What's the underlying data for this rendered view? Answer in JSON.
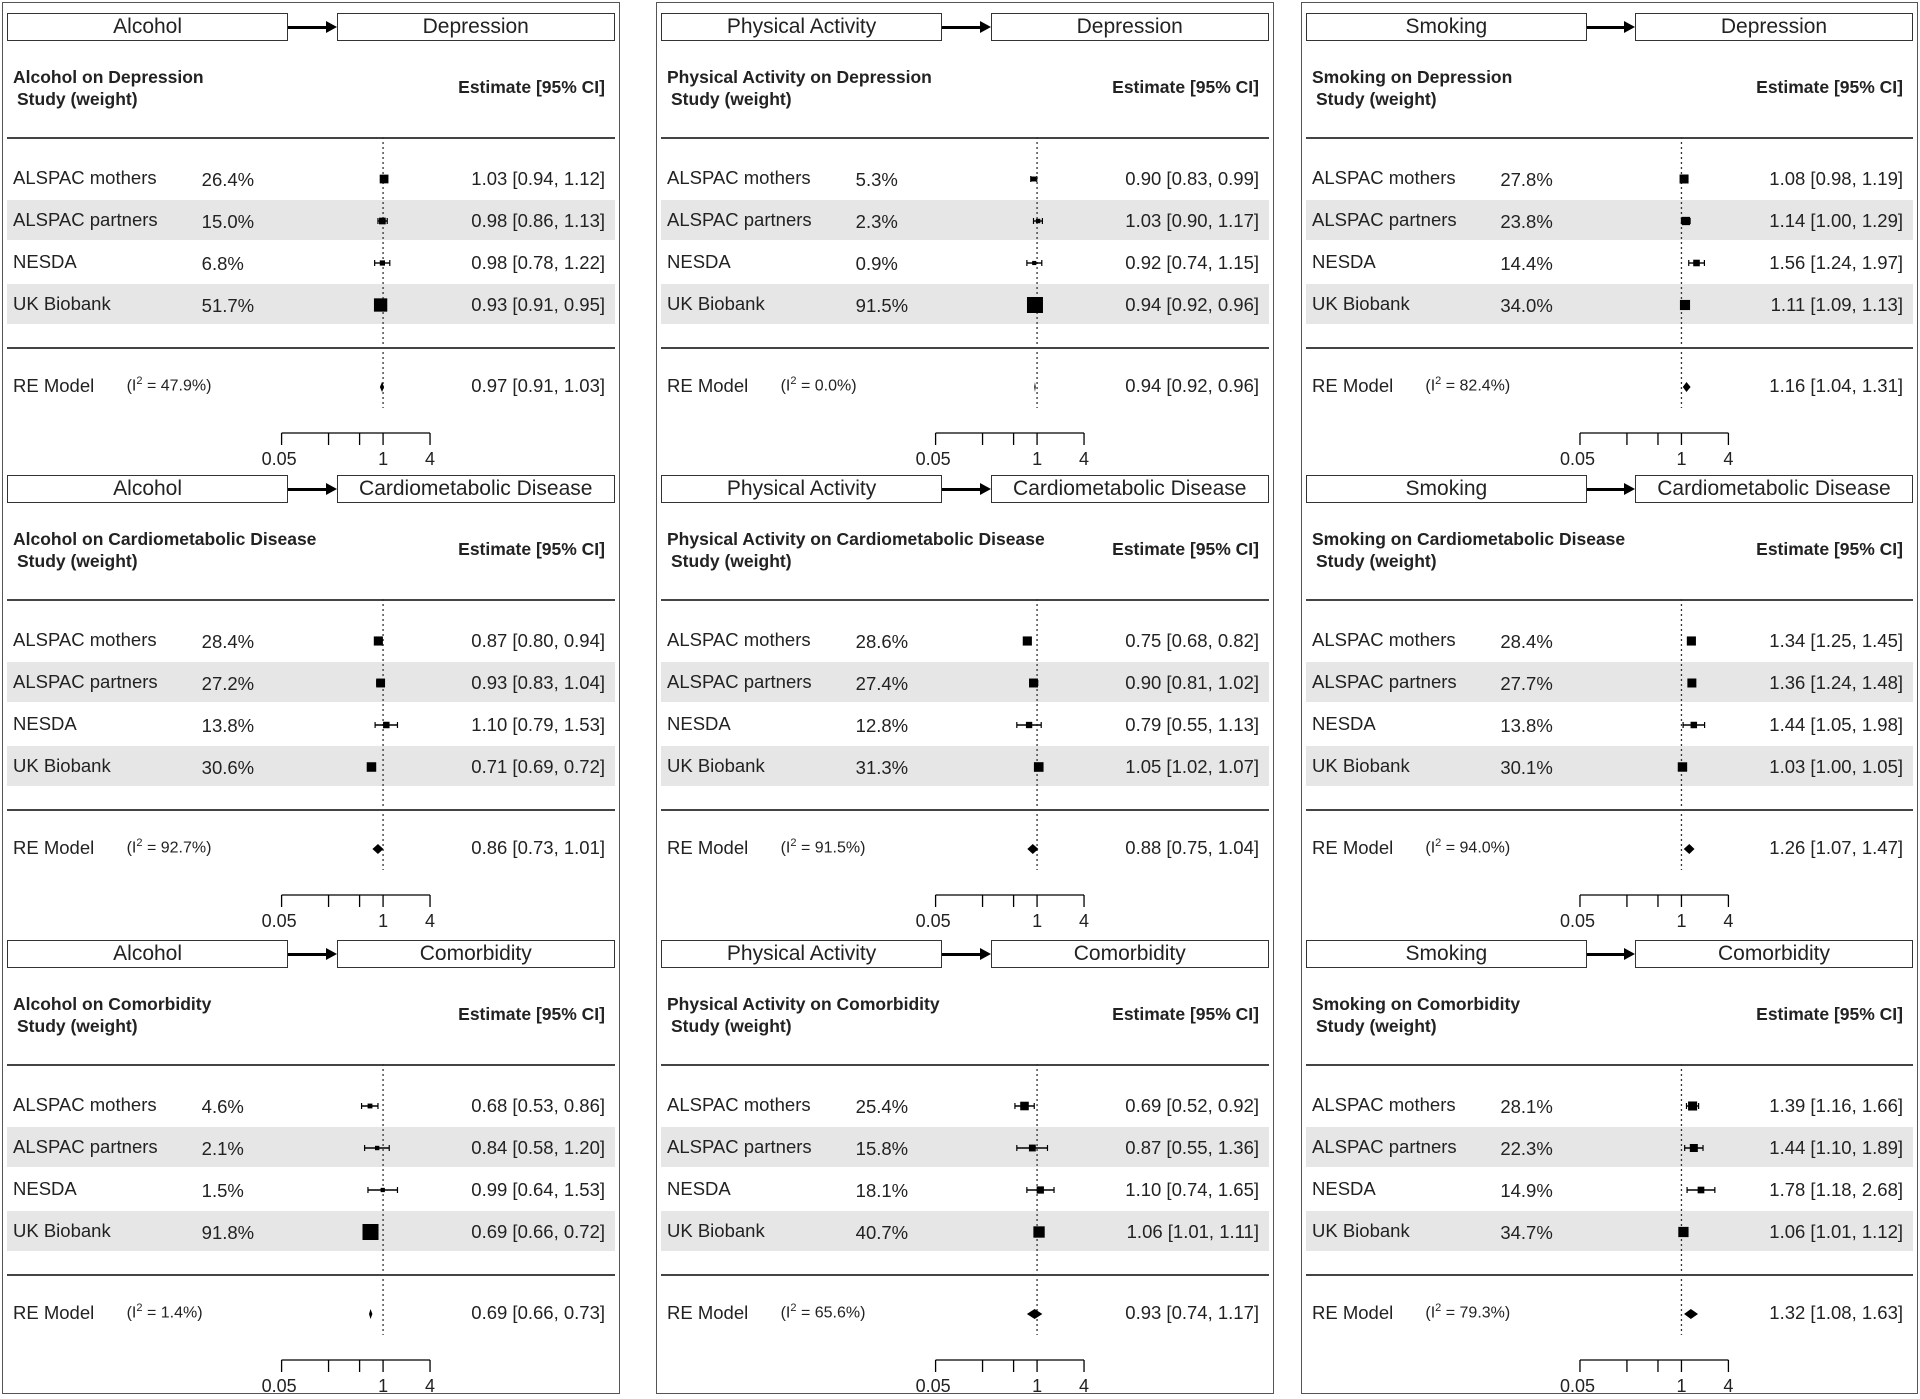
{
  "chart_data": [
    {
      "type": "forest",
      "exposure": "Alcohol",
      "outcome": "Depression",
      "title": "Alcohol on Depression",
      "subtitle": "Study (weight)",
      "estimate_header": "Estimate [95% CI]",
      "studies": [
        {
          "name": "ALSPAC mothers",
          "weight": "26.4%",
          "est": 1.03,
          "lo": 0.94,
          "hi": 1.12,
          "label": "1.03 [0.94, 1.12]"
        },
        {
          "name": "ALSPAC partners",
          "weight": "15.0%",
          "est": 0.98,
          "lo": 0.86,
          "hi": 1.13,
          "label": "0.98 [0.86, 1.13]"
        },
        {
          "name": "NESDA",
          "weight": "6.8%",
          "est": 0.98,
          "lo": 0.78,
          "hi": 1.22,
          "label": "0.98 [0.78, 1.22]"
        },
        {
          "name": "UK Biobank",
          "weight": "51.7%",
          "est": 0.93,
          "lo": 0.91,
          "hi": 0.95,
          "label": "0.93 [0.91, 0.95]"
        }
      ],
      "re_model": {
        "label": "RE Model",
        "i2_prefix": "(I",
        "i2_suffix": " = 47.9%)",
        "est": 0.97,
        "lo": 0.91,
        "hi": 1.03,
        "text": "0.97 [0.91, 1.03]"
      },
      "x_ticks": [
        "0.05",
        "1",
        "4"
      ],
      "xscale": "log"
    },
    {
      "type": "forest",
      "exposure": "Alcohol",
      "outcome": "Cardiometabolic Disease",
      "title": "Alcohol on Cardiometabolic Disease",
      "subtitle": "Study (weight)",
      "estimate_header": "Estimate [95% CI]",
      "studies": [
        {
          "name": "ALSPAC mothers",
          "weight": "28.4%",
          "est": 0.87,
          "lo": 0.8,
          "hi": 0.94,
          "label": "0.87 [0.80, 0.94]"
        },
        {
          "name": "ALSPAC partners",
          "weight": "27.2%",
          "est": 0.93,
          "lo": 0.83,
          "hi": 1.04,
          "label": "0.93 [0.83, 1.04]"
        },
        {
          "name": "NESDA",
          "weight": "13.8%",
          "est": 1.1,
          "lo": 0.79,
          "hi": 1.53,
          "label": "1.10 [0.79, 1.53]"
        },
        {
          "name": "UK Biobank",
          "weight": "30.6%",
          "est": 0.71,
          "lo": 0.69,
          "hi": 0.72,
          "label": "0.71 [0.69, 0.72]"
        }
      ],
      "re_model": {
        "label": "RE Model",
        "i2_prefix": "(I",
        "i2_suffix": " = 92.7%)",
        "est": 0.86,
        "lo": 0.73,
        "hi": 1.01,
        "text": "0.86 [0.73, 1.01]"
      },
      "x_ticks": [
        "0.05",
        "1",
        "4"
      ],
      "xscale": "log"
    },
    {
      "type": "forest",
      "exposure": "Alcohol",
      "outcome": "Comorbidity",
      "title": "Alcohol on Comorbidity",
      "subtitle": "Study (weight)",
      "estimate_header": "Estimate [95% CI]",
      "studies": [
        {
          "name": "ALSPAC mothers",
          "weight": "4.6%",
          "est": 0.68,
          "lo": 0.53,
          "hi": 0.86,
          "label": "0.68 [0.53, 0.86]"
        },
        {
          "name": "ALSPAC partners",
          "weight": "2.1%",
          "est": 0.84,
          "lo": 0.58,
          "hi": 1.2,
          "label": "0.84 [0.58, 1.20]"
        },
        {
          "name": "NESDA",
          "weight": "1.5%",
          "est": 0.99,
          "lo": 0.64,
          "hi": 1.53,
          "label": "0.99 [0.64, 1.53]"
        },
        {
          "name": "UK Biobank",
          "weight": "91.8%",
          "est": 0.69,
          "lo": 0.66,
          "hi": 0.72,
          "label": "0.69 [0.66, 0.72]"
        }
      ],
      "re_model": {
        "label": "RE Model",
        "i2_prefix": "(I",
        "i2_suffix": " = 1.4%)",
        "est": 0.69,
        "lo": 0.66,
        "hi": 0.73,
        "text": "0.69 [0.66, 0.73]"
      },
      "x_ticks": [
        "0.05",
        "1",
        "4"
      ],
      "xscale": "log"
    },
    {
      "type": "forest",
      "exposure": "Physical Activity",
      "outcome": "Depression",
      "title": "Physical Activity on Depression",
      "subtitle": "Study (weight)",
      "estimate_header": "Estimate [95% CI]",
      "studies": [
        {
          "name": "ALSPAC mothers",
          "weight": "5.3%",
          "est": 0.9,
          "lo": 0.83,
          "hi": 0.99,
          "label": "0.90 [0.83, 0.99]"
        },
        {
          "name": "ALSPAC partners",
          "weight": "2.3%",
          "est": 1.03,
          "lo": 0.9,
          "hi": 1.17,
          "label": "1.03 [0.90, 1.17]"
        },
        {
          "name": "NESDA",
          "weight": "0.9%",
          "est": 0.92,
          "lo": 0.74,
          "hi": 1.15,
          "label": "0.92 [0.74, 1.15]"
        },
        {
          "name": "UK Biobank",
          "weight": "91.5%",
          "est": 0.94,
          "lo": 0.92,
          "hi": 0.96,
          "label": "0.94 [0.92, 0.96]"
        }
      ],
      "re_model": {
        "label": "RE Model",
        "i2_prefix": "(I",
        "i2_suffix": " = 0.0%)",
        "est": 0.94,
        "lo": 0.92,
        "hi": 0.96,
        "text": "0.94 [0.92, 0.96]"
      },
      "x_ticks": [
        "0.05",
        "1",
        "4"
      ],
      "xscale": "log"
    },
    {
      "type": "forest",
      "exposure": "Physical Activity",
      "outcome": "Cardiometabolic Disease",
      "title": "Physical Activity on Cardiometabolic Disease",
      "subtitle": "Study (weight)",
      "estimate_header": "Estimate [95% CI]",
      "studies": [
        {
          "name": "ALSPAC mothers",
          "weight": "28.6%",
          "est": 0.75,
          "lo": 0.68,
          "hi": 0.82,
          "label": "0.75 [0.68, 0.82]"
        },
        {
          "name": "ALSPAC partners",
          "weight": "27.4%",
          "est": 0.9,
          "lo": 0.81,
          "hi": 1.02,
          "label": "0.90 [0.81, 1.02]"
        },
        {
          "name": "NESDA",
          "weight": "12.8%",
          "est": 0.79,
          "lo": 0.55,
          "hi": 1.13,
          "label": "0.79 [0.55, 1.13]"
        },
        {
          "name": "UK Biobank",
          "weight": "31.3%",
          "est": 1.05,
          "lo": 1.02,
          "hi": 1.07,
          "label": "1.05 [1.02, 1.07]"
        }
      ],
      "re_model": {
        "label": "RE Model",
        "i2_prefix": "(I",
        "i2_suffix": " = 91.5%)",
        "est": 0.88,
        "lo": 0.75,
        "hi": 1.04,
        "text": "0.88 [0.75, 1.04]"
      },
      "x_ticks": [
        "0.05",
        "1",
        "4"
      ],
      "xscale": "log"
    },
    {
      "type": "forest",
      "exposure": "Physical Activity",
      "outcome": "Comorbidity",
      "title": "Physical Activity on Comorbidity",
      "subtitle": "Study (weight)",
      "estimate_header": "Estimate [95% CI]",
      "studies": [
        {
          "name": "ALSPAC mothers",
          "weight": "25.4%",
          "est": 0.69,
          "lo": 0.52,
          "hi": 0.92,
          "label": "0.69 [0.52, 0.92]"
        },
        {
          "name": "ALSPAC partners",
          "weight": "15.8%",
          "est": 0.87,
          "lo": 0.55,
          "hi": 1.36,
          "label": "0.87 [0.55, 1.36]"
        },
        {
          "name": "NESDA",
          "weight": "18.1%",
          "est": 1.1,
          "lo": 0.74,
          "hi": 1.65,
          "label": "1.10 [0.74, 1.65]"
        },
        {
          "name": "UK Biobank",
          "weight": "40.7%",
          "est": 1.06,
          "lo": 1.01,
          "hi": 1.11,
          "label": "1.06 [1.01, 1.11]"
        }
      ],
      "re_model": {
        "label": "RE Model",
        "i2_prefix": "(I",
        "i2_suffix": " = 65.6%)",
        "est": 0.93,
        "lo": 0.74,
        "hi": 1.17,
        "text": "0.93 [0.74, 1.17]"
      },
      "x_ticks": [
        "0.05",
        "1",
        "4"
      ],
      "xscale": "log"
    },
    {
      "type": "forest",
      "exposure": "Smoking",
      "outcome": "Depression",
      "title": "Smoking on Depression",
      "subtitle": "Study (weight)",
      "estimate_header": "Estimate [95% CI]",
      "studies": [
        {
          "name": "ALSPAC mothers",
          "weight": "27.8%",
          "est": 1.08,
          "lo": 0.98,
          "hi": 1.19,
          "label": "1.08 [0.98, 1.19]"
        },
        {
          "name": "ALSPAC partners",
          "weight": "23.8%",
          "est": 1.14,
          "lo": 1.0,
          "hi": 1.29,
          "label": "1.14 [1.00, 1.29]"
        },
        {
          "name": "NESDA",
          "weight": "14.4%",
          "est": 1.56,
          "lo": 1.24,
          "hi": 1.97,
          "label": "1.56 [1.24, 1.97]"
        },
        {
          "name": "UK Biobank",
          "weight": "34.0%",
          "est": 1.11,
          "lo": 1.09,
          "hi": 1.13,
          "label": "1.11 [1.09, 1.13]"
        }
      ],
      "re_model": {
        "label": "RE Model",
        "i2_prefix": "(I",
        "i2_suffix": " = 82.4%)",
        "est": 1.16,
        "lo": 1.04,
        "hi": 1.31,
        "text": "1.16 [1.04, 1.31]"
      },
      "x_ticks": [
        "0.05",
        "1",
        "4"
      ],
      "xscale": "log"
    },
    {
      "type": "forest",
      "exposure": "Smoking",
      "outcome": "Cardiometabolic Disease",
      "title": "Smoking on Cardiometabolic Disease",
      "subtitle": "Study (weight)",
      "estimate_header": "Estimate [95% CI]",
      "studies": [
        {
          "name": "ALSPAC mothers",
          "weight": "28.4%",
          "est": 1.34,
          "lo": 1.25,
          "hi": 1.45,
          "label": "1.34 [1.25, 1.45]"
        },
        {
          "name": "ALSPAC partners",
          "weight": "27.7%",
          "est": 1.36,
          "lo": 1.24,
          "hi": 1.48,
          "label": "1.36 [1.24, 1.48]"
        },
        {
          "name": "NESDA",
          "weight": "13.8%",
          "est": 1.44,
          "lo": 1.05,
          "hi": 1.98,
          "label": "1.44 [1.05, 1.98]"
        },
        {
          "name": "UK Biobank",
          "weight": "30.1%",
          "est": 1.03,
          "lo": 1.0,
          "hi": 1.05,
          "label": "1.03 [1.00, 1.05]"
        }
      ],
      "re_model": {
        "label": "RE Model",
        "i2_prefix": "(I",
        "i2_suffix": " = 94.0%)",
        "est": 1.26,
        "lo": 1.07,
        "hi": 1.47,
        "text": "1.26 [1.07, 1.47]"
      },
      "x_ticks": [
        "0.05",
        "1",
        "4"
      ],
      "xscale": "log"
    },
    {
      "type": "forest",
      "exposure": "Smoking",
      "outcome": "Comorbidity",
      "title": "Smoking on Comorbidity",
      "subtitle": "Study (weight)",
      "estimate_header": "Estimate [95% CI]",
      "studies": [
        {
          "name": "ALSPAC mothers",
          "weight": "28.1%",
          "est": 1.39,
          "lo": 1.16,
          "hi": 1.66,
          "label": "1.39 [1.16, 1.66]"
        },
        {
          "name": "ALSPAC partners",
          "weight": "22.3%",
          "est": 1.44,
          "lo": 1.1,
          "hi": 1.89,
          "label": "1.44 [1.10, 1.89]"
        },
        {
          "name": "NESDA",
          "weight": "14.9%",
          "est": 1.78,
          "lo": 1.18,
          "hi": 2.68,
          "label": "1.78 [1.18, 2.68]"
        },
        {
          "name": "UK Biobank",
          "weight": "34.7%",
          "est": 1.06,
          "lo": 1.01,
          "hi": 1.12,
          "label": "1.06 [1.01, 1.12]"
        }
      ],
      "re_model": {
        "label": "RE Model",
        "i2_prefix": "(I",
        "i2_suffix": " = 79.3%)",
        "est": 1.32,
        "lo": 1.08,
        "hi": 1.63,
        "text": "1.32 [1.08, 1.63]"
      },
      "x_ticks": [
        "0.05",
        "1",
        "4"
      ],
      "xscale": "log"
    }
  ]
}
